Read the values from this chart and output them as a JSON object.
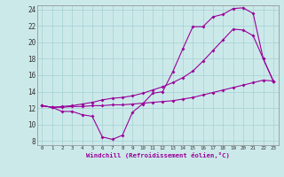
{
  "xlabel": "Windchill (Refroidissement éolien,°C)",
  "xlim": [
    -0.5,
    23.5
  ],
  "ylim": [
    7.5,
    24.5
  ],
  "yticks": [
    8,
    10,
    12,
    14,
    16,
    18,
    20,
    22,
    24
  ],
  "xticks": [
    0,
    1,
    2,
    3,
    4,
    5,
    6,
    7,
    8,
    9,
    10,
    11,
    12,
    13,
    14,
    15,
    16,
    17,
    18,
    19,
    20,
    21,
    22,
    23
  ],
  "bg_color": "#cce9ea",
  "grid_color": "#aad4d6",
  "line_color": "#990099",
  "line1_x": [
    0,
    1,
    2,
    3,
    4,
    5,
    6,
    7,
    8,
    9,
    10,
    11,
    12,
    13,
    14,
    15,
    16,
    17,
    18,
    19,
    20,
    21,
    22,
    23
  ],
  "line1_y": [
    12.3,
    12.1,
    11.6,
    11.6,
    11.2,
    11.0,
    8.5,
    8.2,
    8.7,
    11.5,
    12.5,
    13.8,
    14.0,
    16.4,
    19.2,
    21.9,
    21.9,
    23.1,
    23.4,
    24.1,
    24.2,
    23.5,
    18.0,
    15.3
  ],
  "line2_x": [
    0,
    1,
    2,
    3,
    4,
    5,
    6,
    7,
    8,
    9,
    10,
    11,
    12,
    13,
    14,
    15,
    16,
    17,
    18,
    19,
    20,
    21,
    22,
    23
  ],
  "line2_y": [
    12.3,
    12.1,
    12.1,
    12.2,
    12.2,
    12.3,
    12.3,
    12.4,
    12.4,
    12.5,
    12.6,
    12.7,
    12.8,
    12.9,
    13.1,
    13.3,
    13.6,
    13.9,
    14.2,
    14.5,
    14.8,
    15.1,
    15.4,
    15.3
  ],
  "line3_x": [
    0,
    1,
    2,
    3,
    4,
    5,
    6,
    7,
    8,
    9,
    10,
    11,
    12,
    13,
    14,
    15,
    16,
    17,
    18,
    19,
    20,
    21,
    22,
    23
  ],
  "line3_y": [
    12.3,
    12.1,
    12.2,
    12.3,
    12.5,
    12.7,
    13.0,
    13.2,
    13.3,
    13.5,
    13.8,
    14.2,
    14.6,
    15.1,
    15.7,
    16.5,
    17.7,
    19.0,
    20.3,
    21.6,
    21.5,
    20.8,
    18.0,
    15.3
  ]
}
